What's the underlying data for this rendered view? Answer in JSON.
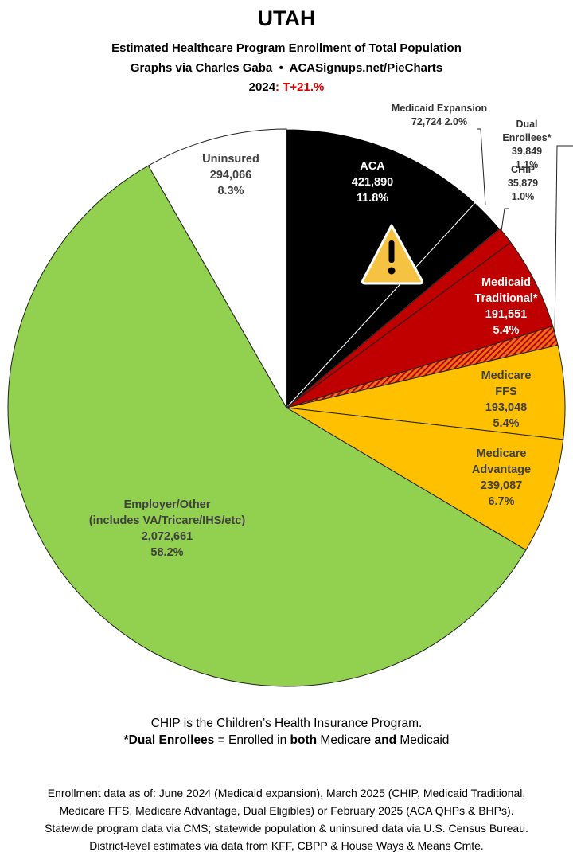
{
  "chart_data": {
    "type": "pie",
    "title": "UTAH",
    "subtitle": "Estimated Healthcare Program Enrollment of Total Population",
    "credit": "Graphs via Charles Gaba  •  ACASignups.net/PieCharts",
    "year": "2024",
    "change": ": T+21.%",
    "categories": [
      "ACA",
      "Medicaid Expansion",
      "CHIP",
      "Medicaid\nTraditional*",
      "Dual Enrollees*",
      "Medicare FFS",
      "Medicare\nAdvantage",
      "Employer/Other\n(includes VA/Tricare/IHS/etc)",
      "Uninsured"
    ],
    "values": [
      421890,
      72724,
      35879,
      191551,
      39849,
      193048,
      239087,
      2072661,
      294066
    ],
    "value_labels": [
      "421,890",
      "72,724",
      "35,879",
      "191,551",
      "39,849",
      "193,048",
      "239,087",
      "2,072,661",
      "294,066"
    ],
    "percent_labels": [
      "11.8%",
      "2.0%",
      "1.0%",
      "5.4%",
      "1.1%",
      "5.4%",
      "6.7%",
      "58.2%",
      "8.3%"
    ],
    "colors": [
      "#000000",
      "#000000",
      "#c00000",
      "#c00000",
      "#e8711a",
      "#ffc000",
      "#ffc000",
      "#92d050",
      "#ffffff"
    ],
    "hatched": [
      false,
      false,
      false,
      false,
      true,
      false,
      false,
      false,
      false
    ],
    "notes": [
      "CHIP is the Children’s Health Insurance Program."
    ],
    "dual_note": [
      "*Dual Enrollees",
      " = Enrolled in ",
      "both",
      " Medicare ",
      "and",
      " Medicaid"
    ],
    "sources": [
      "Enrollment data as of: June 2024 (Medicaid expansion), March 2025 (CHIP, Medicaid Traditional,",
      "Medicare FFS, Medicare Advantage, Dual Eligibles) or February 2025 (ACA QHPs & BHPs).",
      "Statewide program data via CMS; statewide population & uninsured data via U.S. Census Bureau.",
      "District-level estimates via data from KFF, CBPP & House Ways & Means Cmte."
    ]
  }
}
